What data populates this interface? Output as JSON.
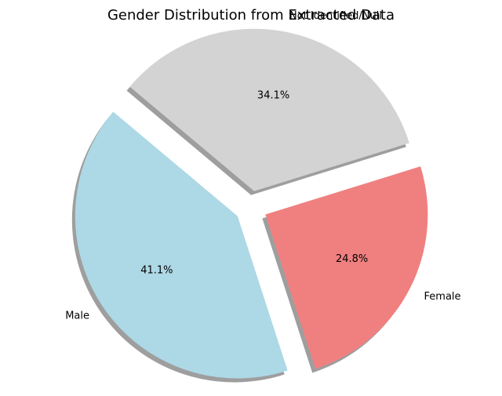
{
  "chart_data": {
    "type": "pie",
    "title": "Gender Distribution from Extracted Data",
    "slices": [
      {
        "label": "Male",
        "value": 41.1,
        "pct_label": "41.1%",
        "color": "#add8e6"
      },
      {
        "label": "Female",
        "value": 24.8,
        "pct_label": "24.8%",
        "color": "#f08080"
      },
      {
        "label": "Not Identified/Null",
        "value": 34.1,
        "pct_label": "34.1%",
        "color": "#d3d3d3"
      }
    ],
    "exploded": true,
    "shadow": true
  }
}
